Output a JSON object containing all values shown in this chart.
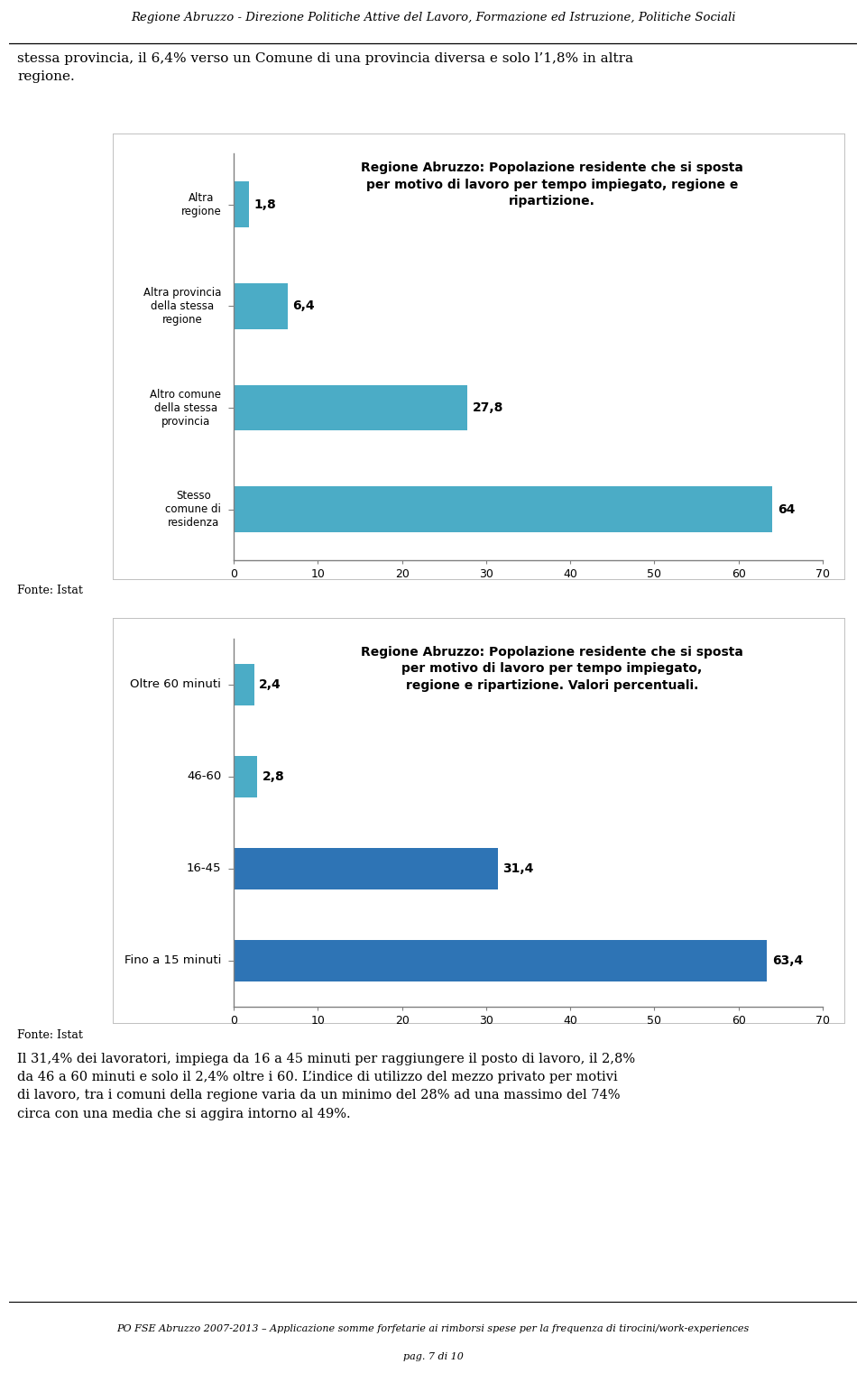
{
  "header_text": "Regione Abruzzo - Direzione Politiche Attive del Lavoro, Formazione ed Istruzione, Politiche Sociali",
  "intro_text": "stessa provincia, il 6,4% verso un Comune di una provincia diversa e solo l’1,8% in altra\nregione.",
  "chart1_title": "Regione Abruzzo: Popolazione residente che si sposta\nper motivo di lavoro per tempo impiegato, regione e\nripartizione.",
  "chart1_categories": [
    "Altra\nregione",
    "Altra provincia\ndella stessa\nregione",
    "Altro comune\ndella stessa\nprovincia",
    "Stesso\ncomune di\nresidenza"
  ],
  "chart1_values": [
    1.8,
    6.4,
    27.8,
    64.0
  ],
  "chart1_value_labels": [
    "1,8",
    "6,4",
    "27,8",
    "64"
  ],
  "chart1_color": "#4bacc6",
  "chart1_fonte": "Fonte: Istat",
  "chart2_title": "Regione Abruzzo: Popolazione residente che si sposta\nper motivo di lavoro per tempo impiegato,\nregione e ripartizione. Valori percentuali.",
  "chart2_categories": [
    "Oltre 60 minuti",
    "46-60",
    "16-45",
    "Fino a 15 minuti"
  ],
  "chart2_values": [
    2.4,
    2.8,
    31.4,
    63.4
  ],
  "chart2_value_labels": [
    "2,4",
    "2,8",
    "31,4",
    "63,4"
  ],
  "chart2_colors": [
    "#4bacc6",
    "#4bacc6",
    "#2e74b5",
    "#2e74b5"
  ],
  "chart2_fonte": "Fonte: Istat",
  "xlim": [
    0,
    70
  ],
  "xticks": [
    0,
    10,
    20,
    30,
    40,
    50,
    60,
    70
  ],
  "bottom_text": "Il 31,4% dei lavoratori, impiega da 16 a 45 minuti per raggiungere il posto di lavoro, il 2,8%\nda 46 a 60 minuti e solo il 2,4% oltre i 60. L’indice di utilizzo del mezzo privato per motivi\ndi lavoro, tra i comuni della regione varia da un minimo del 28% ad una massimo del 74%\ncirca con una media che si aggira intorno al 49%.",
  "footer_text": "PO FSE Abruzzo 2007-2013 – Applicazione somme forfetarie ai rimborsi spese per la frequenza di tirocini/work-experiences",
  "page_text": "pag. 7 di 10",
  "shadow_color": "#9e9e9e",
  "panel_color": "#ffffff",
  "spine_color": "#c0c0c0"
}
